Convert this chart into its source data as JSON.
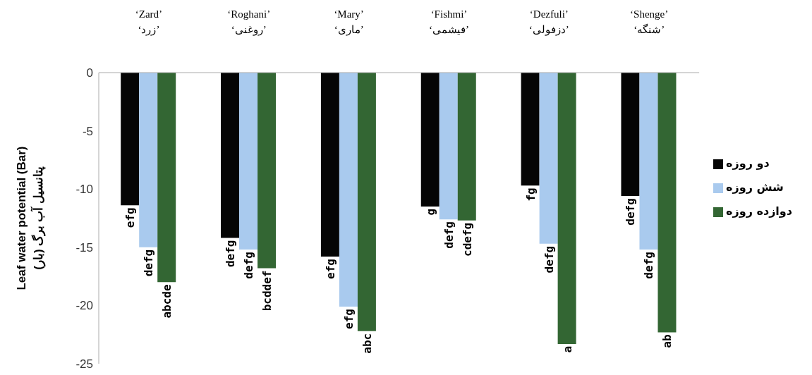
{
  "chart_data": {
    "type": "bar",
    "ylabel": "Leaf water potential (Bar)\nپتانسیل آب برگ (بار)",
    "categories": [
      "‘Zard’\n‘زرد’",
      "‘Roghani’\n‘روغنی’",
      "‘Mary’\n‘ماری’",
      "‘Fishmi’\n‘فیشمی’",
      "‘Dezfuli’\n‘دزفولی’",
      "‘Shenge’\n‘شنگه’"
    ],
    "series": [
      {
        "name": "دو روزه",
        "color": "#050505",
        "values": [
          -11.4,
          -14.2,
          -15.8,
          -11.5,
          -9.7,
          -10.6
        ],
        "value_labels": [
          "efg",
          "defg",
          "efg",
          "g",
          "fg",
          "defg"
        ]
      },
      {
        "name": "شش روزه",
        "color": "#a9caee",
        "values": [
          -15.0,
          -15.2,
          -20.1,
          -12.6,
          -14.7,
          -15.2
        ],
        "value_labels": [
          "defg",
          "defg",
          "efg",
          "defg",
          "defg",
          "defg"
        ]
      },
      {
        "name": "دوازده روزه",
        "color": "#336633",
        "values": [
          -18.0,
          -16.8,
          -22.2,
          -12.7,
          -23.3,
          -22.3
        ],
        "value_labels": [
          "abcde",
          "bcddef",
          "abc",
          "cdefg",
          "a",
          "ab"
        ]
      }
    ],
    "ylim": [
      -25,
      0
    ],
    "yticks": [
      -25,
      -20,
      -15,
      -10,
      -5,
      0
    ],
    "grid": false,
    "legend": "right"
  }
}
